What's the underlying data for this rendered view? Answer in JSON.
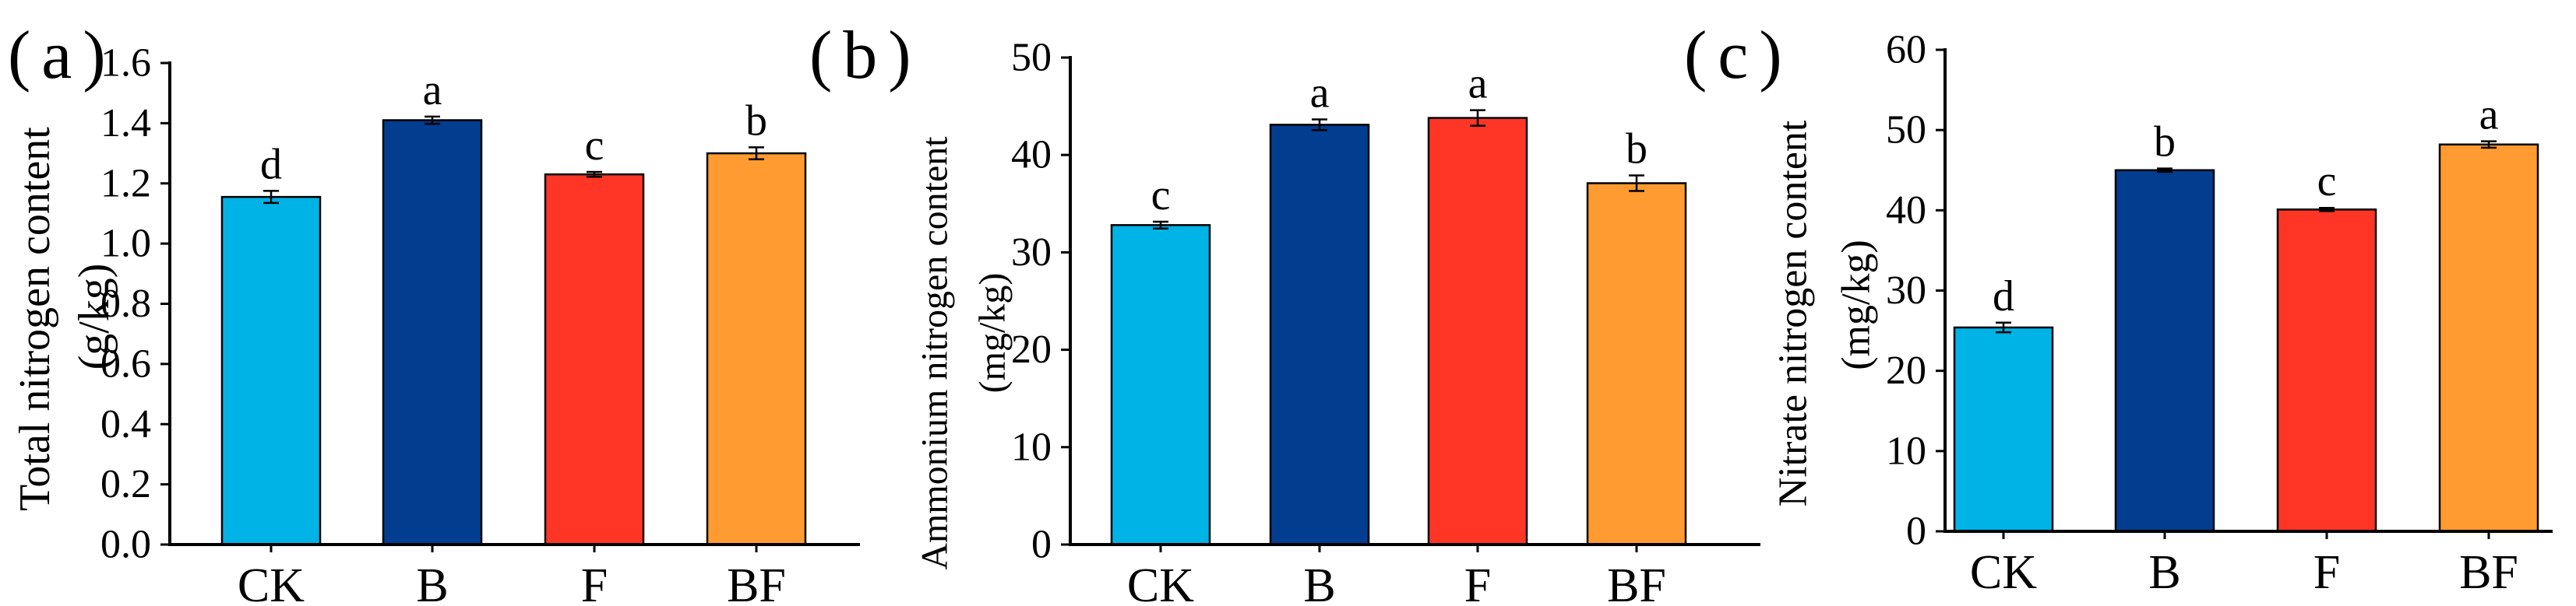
{
  "chart_data": [
    {
      "type": "bar",
      "panel_label": "(a)",
      "categories": [
        "CK",
        "B",
        "F",
        "BF"
      ],
      "values": [
        1.155,
        1.41,
        1.23,
        1.3
      ],
      "errors": [
        0.02,
        0.012,
        0.008,
        0.02
      ],
      "significance": [
        "d",
        "a",
        "c",
        "b"
      ],
      "colors": [
        "#00B3E6",
        "#023D8F",
        "#FF3525",
        "#FF9B31"
      ],
      "ylabel": "Total nitrogen content",
      "yunit": "(g/kg)",
      "ylim": [
        0,
        1.6
      ],
      "yticks": [
        0,
        0.2,
        0.4,
        0.6,
        0.8,
        1.0,
        1.2,
        1.4,
        1.6
      ],
      "ytick_labels": [
        "0.0",
        "0.2",
        "0.4",
        "0.6",
        "0.8",
        "1.0",
        "1.2",
        "1.4",
        "1.6"
      ],
      "grid": false
    },
    {
      "type": "bar",
      "panel_label": "(b)",
      "categories": [
        "CK",
        "B",
        "F",
        "BF"
      ],
      "values": [
        32.8,
        43.1,
        43.8,
        37.1
      ],
      "errors": [
        0.35,
        0.55,
        0.8,
        0.8
      ],
      "significance": [
        "c",
        "a",
        "a",
        "b"
      ],
      "colors": [
        "#00B3E6",
        "#023D8F",
        "#FF3525",
        "#FF9B31"
      ],
      "ylabel": "Ammonium nitrogen content",
      "yunit": "(mg/kg)",
      "ylim": [
        0,
        50
      ],
      "yticks": [
        0,
        10,
        20,
        30,
        40,
        50
      ],
      "ytick_labels": [
        "0",
        "10",
        "20",
        "30",
        "40",
        "50"
      ],
      "grid": false
    },
    {
      "type": "bar",
      "panel_label": "(c)",
      "categories": [
        "CK",
        "B",
        "F",
        "BF"
      ],
      "values": [
        25.4,
        45.0,
        40.1,
        48.2
      ],
      "errors": [
        0.6,
        0.2,
        0.2,
        0.4
      ],
      "significance": [
        "d",
        "b",
        "c",
        "a"
      ],
      "colors": [
        "#00B3E6",
        "#023D8F",
        "#FF3525",
        "#FF9B31"
      ],
      "ylabel": "Nitrate nitrogen content",
      "yunit": "(mg/kg)",
      "ylim": [
        0,
        60
      ],
      "yticks": [
        0,
        10,
        20,
        30,
        40,
        50,
        60
      ],
      "ytick_labels": [
        "0",
        "10",
        "20",
        "30",
        "40",
        "50",
        "60"
      ],
      "grid": false
    }
  ]
}
